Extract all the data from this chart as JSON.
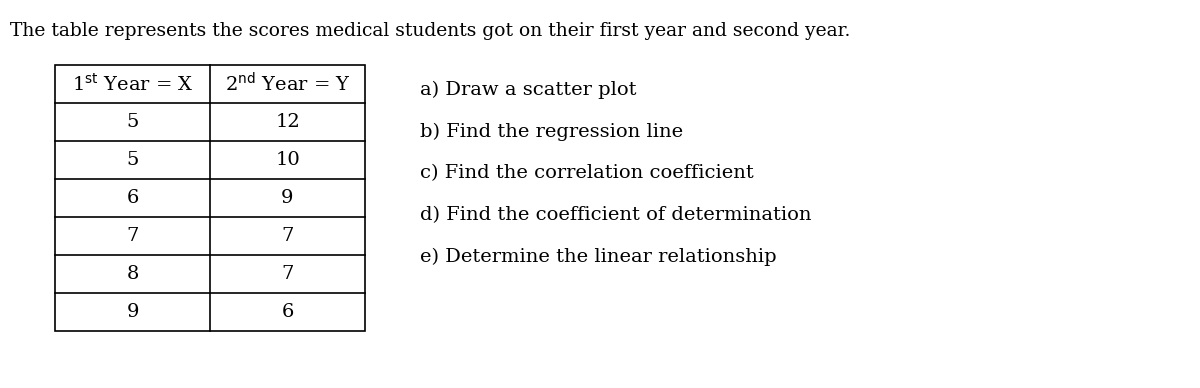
{
  "title": "The table represents the scores medical students got on their first year and second year.",
  "x_values": [
    5,
    5,
    6,
    7,
    8,
    9
  ],
  "y_values": [
    12,
    10,
    9,
    7,
    7,
    6
  ],
  "questions": [
    "a) Draw a scatter plot",
    "b) Find the regression line",
    "c) Find the correlation coefficient",
    "d) Find the coefficient of determination",
    "e) Determine the linear relationship"
  ],
  "bg_color": "#ffffff",
  "text_color": "#000000",
  "table_line_color": "#000000",
  "title_fontsize": 13.5,
  "table_fontsize": 14,
  "question_fontsize": 14,
  "fig_width": 12.0,
  "fig_height": 3.88,
  "dpi": 100
}
